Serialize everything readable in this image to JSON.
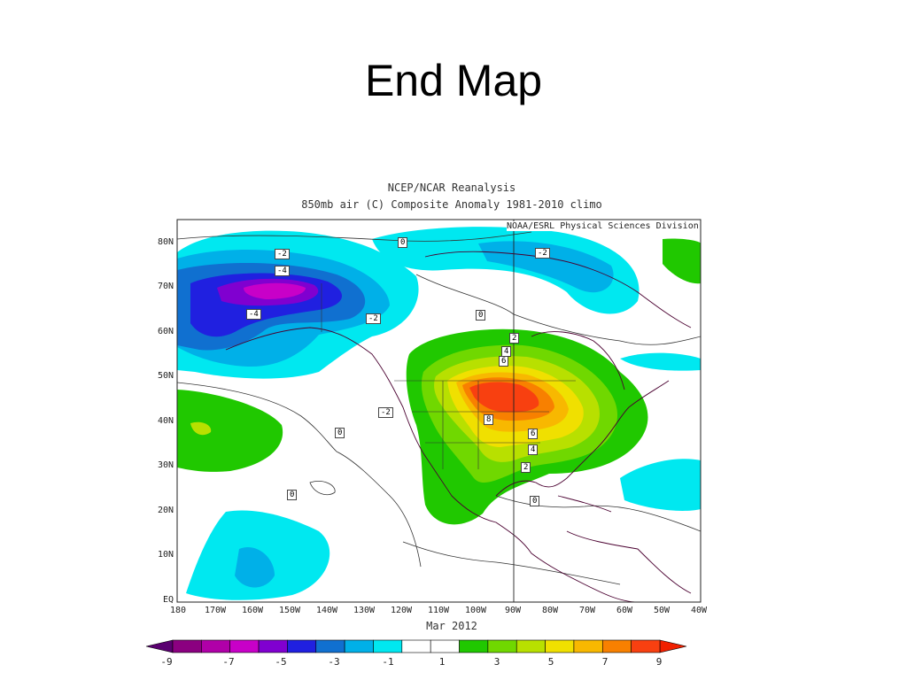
{
  "slide": {
    "title": "End Map"
  },
  "map": {
    "header_line1": "NCEP/NCAR Reanalysis",
    "header_line2": "850mb air (C) Composite Anomaly 1981-2010 climo",
    "credit": "NOAA/ESRL Physical Sciences Division",
    "date_label": "Mar 2012",
    "lat_labels": [
      "80N",
      "70N",
      "60N",
      "50N",
      "40N",
      "30N",
      "20N",
      "10N",
      "EQ"
    ],
    "lon_labels": [
      "180",
      "170W",
      "160W",
      "150W",
      "140W",
      "130W",
      "120W",
      "110W",
      "100W",
      "90W",
      "80W",
      "70W",
      "60W",
      "50W",
      "40W"
    ],
    "contour_labels": [
      "-2",
      "-4",
      "-4",
      "-2",
      "-2",
      "-2",
      "0",
      "0",
      "0",
      "0",
      "0",
      "2",
      "4",
      "6",
      "8",
      "6",
      "4",
      "2"
    ]
  },
  "colorbar": {
    "labels": [
      "-9",
      "-7",
      "-5",
      "-3",
      "-1",
      "1",
      "3",
      "5",
      "7",
      "9"
    ],
    "colors": [
      "#8b0080",
      "#b000a8",
      "#c800c8",
      "#8000d0",
      "#2020e0",
      "#1070d0",
      "#00b0e8",
      "#00e8f0",
      "#ffffff",
      "#ffffff",
      "#20c800",
      "#70d800",
      "#b8e000",
      "#f0e000",
      "#f8b800",
      "#f88000",
      "#f84010"
    ],
    "end_colors": [
      "#5a0070",
      "#f02000"
    ]
  }
}
